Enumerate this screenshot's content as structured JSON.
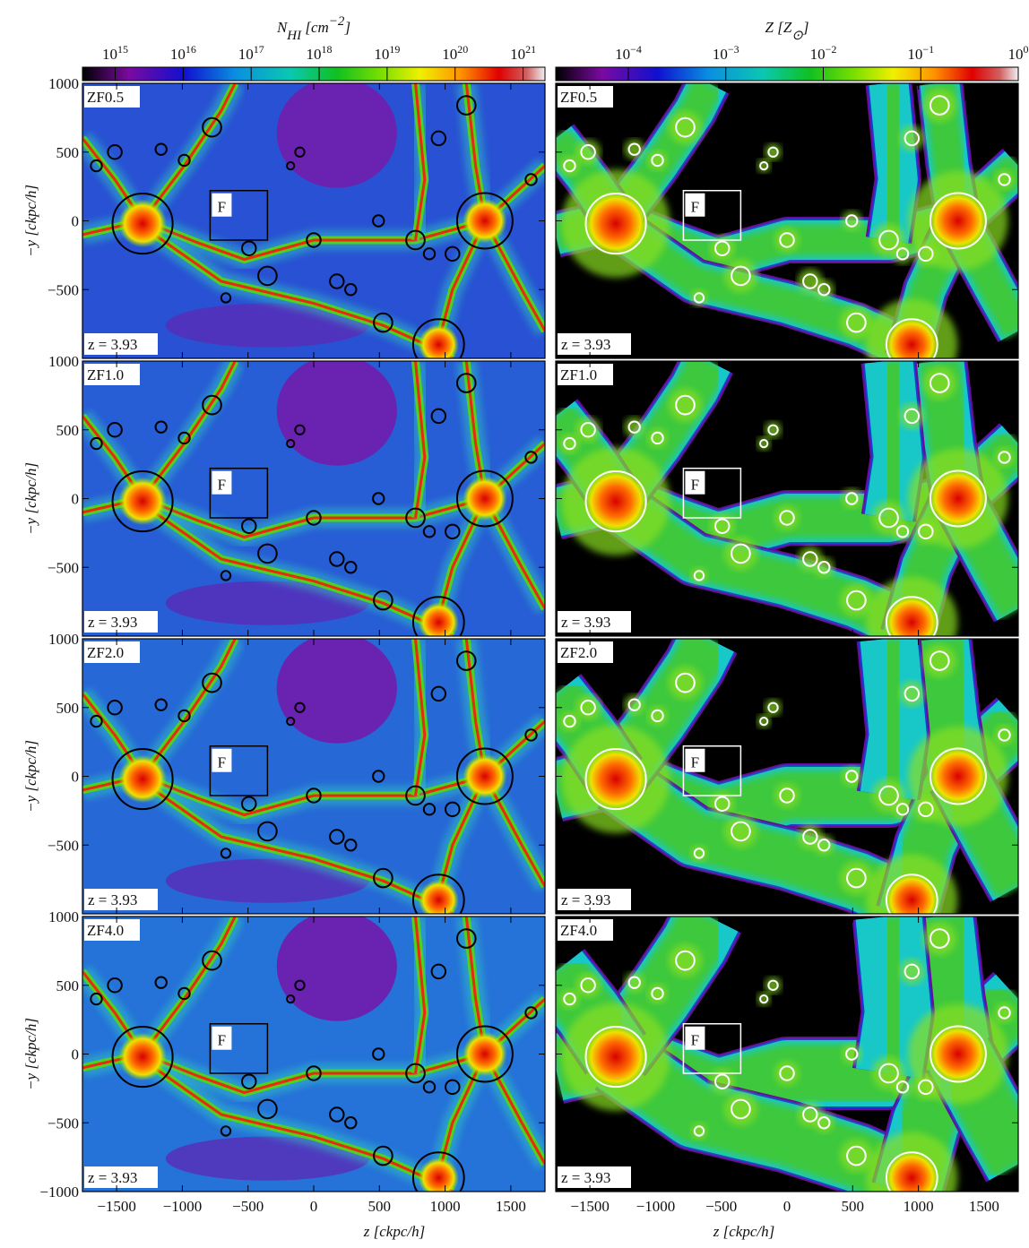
{
  "colorbars": [
    {
      "label": [
        {
          "text": "N"
        },
        {
          "text": "HI",
          "sub": true
        },
        {
          "text": " [cm"
        },
        {
          "text": "−2",
          "sup": true
        },
        {
          "text": "]"
        }
      ],
      "scale": "log",
      "range": [
        330000000000000.0,
        2.1e+21
      ],
      "ticks": [
        {
          "value": 1000000000000000.0,
          "label": "10",
          "exp": "15"
        },
        {
          "value": 1e+16,
          "label": "10",
          "exp": "16"
        },
        {
          "value": 1e+17,
          "label": "10",
          "exp": "17"
        },
        {
          "value": 1e+18,
          "label": "10",
          "exp": "18"
        },
        {
          "value": 1e+19,
          "label": "10",
          "exp": "19"
        },
        {
          "value": 1e+20,
          "label": "10",
          "exp": "20"
        },
        {
          "value": 1e+21,
          "label": "10",
          "exp": "21"
        }
      ]
    },
    {
      "label": [
        {
          "text": "Z"
        },
        {
          "text": " [Z"
        },
        {
          "text": "⊙",
          "sub": true
        },
        {
          "text": "]"
        }
      ],
      "scale": "log",
      "range": [
        1.8e-05,
        1
      ],
      "ticks": [
        {
          "value": 0.0001,
          "label": "10",
          "exp": "−4"
        },
        {
          "value": 0.001,
          "label": "10",
          "exp": "−3"
        },
        {
          "value": 0.01,
          "label": "10",
          "exp": "−2"
        },
        {
          "value": 0.1,
          "label": "10",
          "exp": "−1"
        },
        {
          "value": 1,
          "label": "10",
          "exp": "0"
        }
      ]
    }
  ],
  "x_axis": {
    "label": "z [ckpc/h]",
    "lim": [
      -1760,
      1760
    ],
    "ticks": [
      {
        "value": -1500,
        "label": "−1500"
      },
      {
        "value": -1000,
        "label": "−1000"
      },
      {
        "value": -500,
        "label": "−500"
      },
      0,
      500,
      1000,
      1500
    ]
  },
  "y_axis": {
    "label": "−y [ckpc/h]",
    "lim": [
      -1000,
      1000
    ],
    "ticks": [
      {
        "value": -1000,
        "label": "−1000"
      },
      {
        "value": -500,
        "label": "−500"
      },
      0,
      500,
      1000
    ]
  },
  "panels": [
    {
      "model": "ZF0.5",
      "redshift": "z = 3.93",
      "region": "F"
    },
    {
      "model": "ZF1.0",
      "redshift": "z = 3.93",
      "region": "F"
    },
    {
      "model": "ZF2.0",
      "redshift": "z = 3.93",
      "region": "F"
    },
    {
      "model": "ZF4.0",
      "redshift": "z = 3.93",
      "region": "F"
    }
  ]
}
